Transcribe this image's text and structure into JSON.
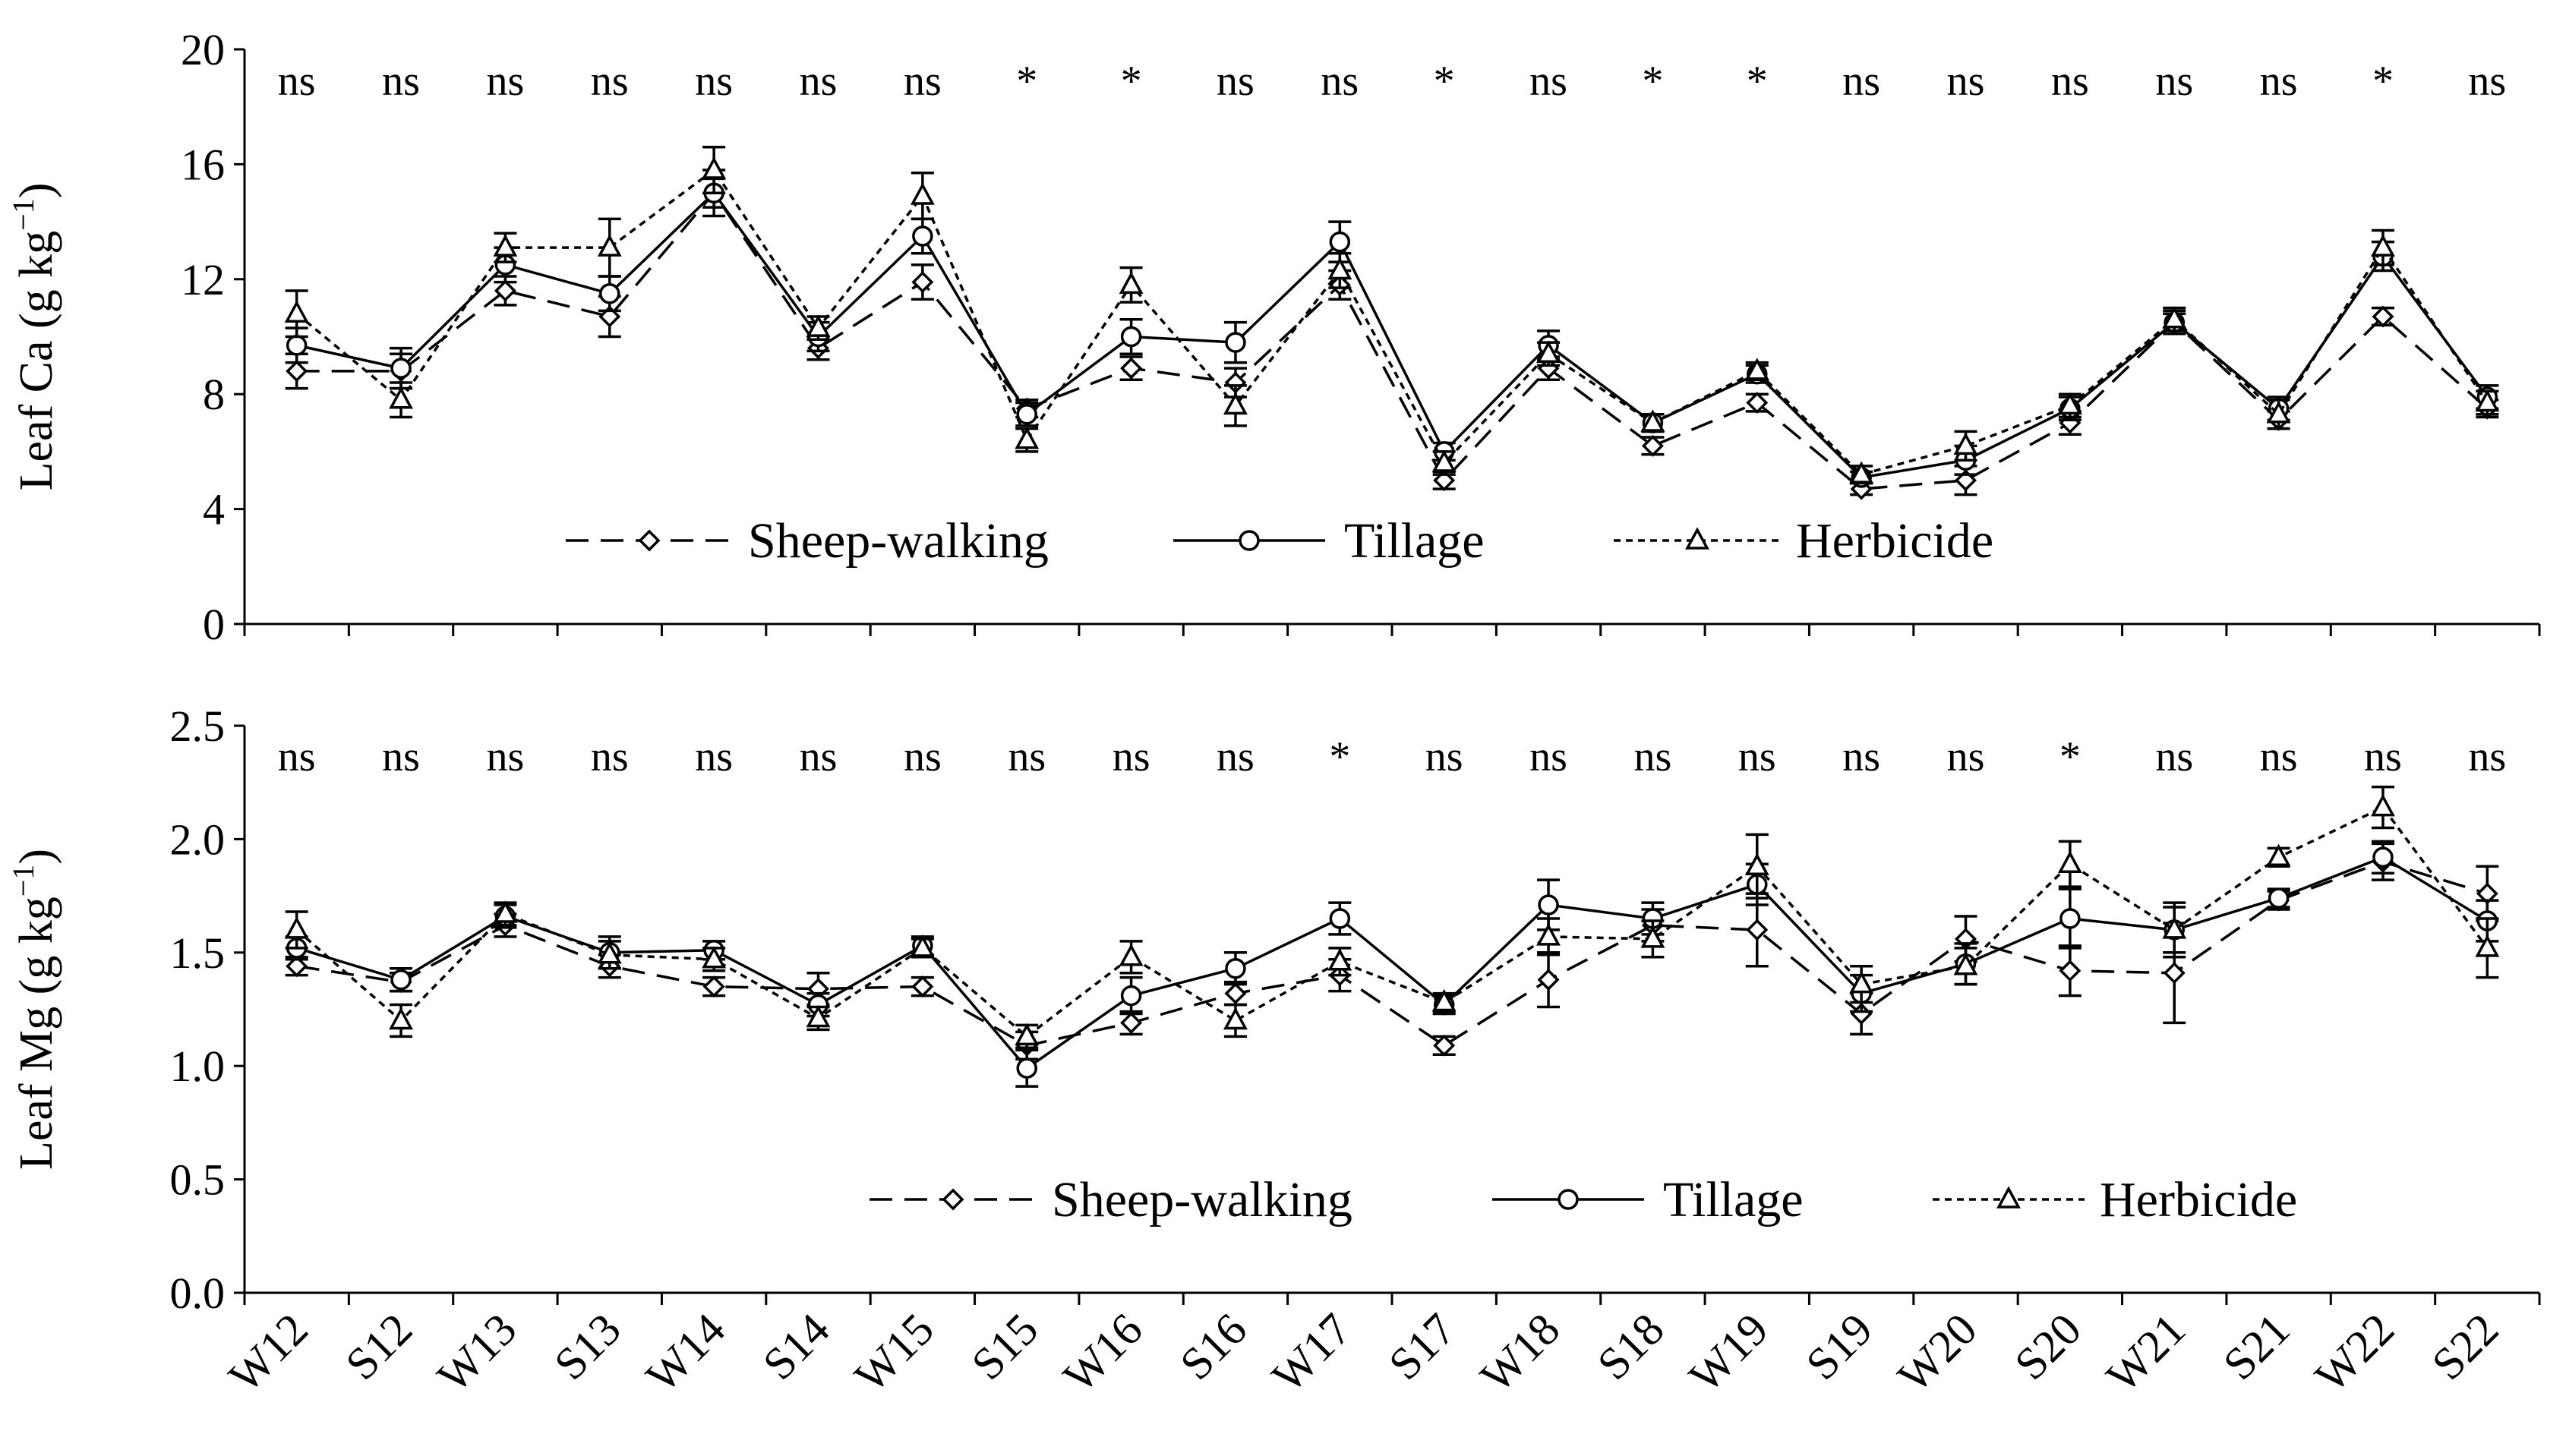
{
  "colors": {
    "ink": "#000000",
    "background": "#ffffff"
  },
  "categories": [
    "W12",
    "S12",
    "W13",
    "S13",
    "W14",
    "S14",
    "W15",
    "S15",
    "W16",
    "S16",
    "W17",
    "S17",
    "W18",
    "S18",
    "W19",
    "S19",
    "W20",
    "S20",
    "W21",
    "S21",
    "W22",
    "S22"
  ],
  "legend_labels": {
    "sheep": "Sheep-walking",
    "tillage": "Tillage",
    "herbicide": "Herbicide"
  },
  "chart_data": [
    {
      "type": "line",
      "ylabel_main": "Leaf Ca (g kg",
      "ylabel_sup": "−1",
      "ylabel_close": ")",
      "ylim": [
        0,
        20
      ],
      "yticks": [
        "0",
        "4",
        "8",
        "12",
        "16",
        "20"
      ],
      "significance": [
        "ns",
        "ns",
        "ns",
        "ns",
        "ns",
        "ns",
        "ns",
        "*",
        "*",
        "ns",
        "ns",
        "*",
        "ns",
        "*",
        "*",
        "ns",
        "ns",
        "ns",
        "ns",
        "ns",
        "*",
        "ns"
      ],
      "legend": "bottom-center",
      "series": [
        {
          "name": "Sheep-walking",
          "marker": "diamond",
          "dash": "long-dash",
          "values": [
            8.8,
            8.8,
            11.6,
            10.7,
            15.0,
            9.6,
            11.9,
            7.5,
            8.9,
            8.4,
            11.8,
            5.0,
            8.9,
            6.2,
            7.7,
            4.7,
            5.0,
            7.0,
            10.5,
            7.1,
            10.7,
            7.5
          ],
          "errors": [
            0.6,
            0.6,
            0.5,
            0.7,
            0.5,
            0.4,
            0.6,
            0.3,
            0.4,
            0.5,
            0.5,
            0.3,
            0.4,
            0.3,
            0.3,
            0.2,
            0.5,
            0.4,
            0.3,
            0.3,
            0.3,
            0.3
          ]
        },
        {
          "name": "Tillage",
          "marker": "circle",
          "dash": "solid",
          "values": [
            9.7,
            8.9,
            12.5,
            11.5,
            15.0,
            10.0,
            13.5,
            7.3,
            10.0,
            9.8,
            13.3,
            6.0,
            9.7,
            7.0,
            8.7,
            5.1,
            5.7,
            7.5,
            10.5,
            7.5,
            12.8,
            7.9
          ],
          "errors": [
            0.6,
            0.7,
            0.6,
            0.6,
            0.8,
            0.5,
            0.6,
            0.4,
            0.6,
            0.7,
            0.7,
            0.3,
            0.5,
            0.3,
            0.3,
            0.2,
            0.5,
            0.4,
            0.4,
            0.4,
            0.5,
            0.4
          ]
        },
        {
          "name": "Herbicide",
          "marker": "triangle",
          "dash": "short-dash",
          "values": [
            10.8,
            7.8,
            13.1,
            13.1,
            15.8,
            10.3,
            14.9,
            6.4,
            11.8,
            7.6,
            12.3,
            5.6,
            9.4,
            7.0,
            8.8,
            5.2,
            6.2,
            7.6,
            10.6,
            7.3,
            13.1,
            7.7
          ],
          "errors": [
            0.8,
            0.6,
            0.5,
            1.0,
            0.8,
            0.4,
            0.8,
            0.4,
            0.6,
            0.7,
            0.6,
            0.4,
            0.4,
            0.3,
            0.3,
            0.3,
            0.5,
            0.4,
            0.4,
            0.5,
            0.6,
            0.4
          ]
        }
      ]
    },
    {
      "type": "line",
      "ylabel_main": "Leaf Mg (g kg",
      "ylabel_sup": "−1",
      "ylabel_close": ")",
      "ylim": [
        0,
        2.5
      ],
      "yticks": [
        "0.0",
        "0.5",
        "1.0",
        "1.5",
        "2.0",
        "2.5"
      ],
      "significance": [
        "ns",
        "ns",
        "ns",
        "ns",
        "ns",
        "ns",
        "ns",
        "ns",
        "ns",
        "ns",
        "*",
        "ns",
        "ns",
        "ns",
        "ns",
        "ns",
        "ns",
        "*",
        "ns",
        "ns",
        "ns",
        "ns"
      ],
      "legend": "bottom-center",
      "series": [
        {
          "name": "Sheep-walking",
          "marker": "diamond",
          "dash": "long-dash",
          "values": [
            1.44,
            1.37,
            1.62,
            1.44,
            1.35,
            1.34,
            1.35,
            1.09,
            1.19,
            1.32,
            1.4,
            1.09,
            1.38,
            1.62,
            1.6,
            1.23,
            1.56,
            1.42,
            1.41,
            1.73,
            1.9,
            1.76
          ],
          "errors": [
            0.04,
            0.04,
            0.05,
            0.05,
            0.04,
            0.07,
            0.04,
            0.06,
            0.05,
            0.05,
            0.07,
            0.04,
            0.12,
            0.07,
            0.16,
            0.09,
            0.1,
            0.11,
            0.22,
            0.04,
            0.08,
            0.12
          ]
        },
        {
          "name": "Tillage",
          "marker": "circle",
          "dash": "solid",
          "values": [
            1.52,
            1.38,
            1.66,
            1.5,
            1.51,
            1.27,
            1.53,
            0.99,
            1.31,
            1.43,
            1.65,
            1.27,
            1.71,
            1.65,
            1.8,
            1.32,
            1.45,
            1.65,
            1.6,
            1.74,
            1.92,
            1.64
          ],
          "errors": [
            0.05,
            0.05,
            0.05,
            0.07,
            0.04,
            0.05,
            0.04,
            0.08,
            0.08,
            0.07,
            0.07,
            0.04,
            0.11,
            0.07,
            0.09,
            0.08,
            0.09,
            0.13,
            0.1,
            0.04,
            0.07,
            0.09
          ]
        },
        {
          "name": "Herbicide",
          "marker": "triangle",
          "dash": "short-dash",
          "values": [
            1.6,
            1.2,
            1.67,
            1.49,
            1.47,
            1.21,
            1.52,
            1.13,
            1.48,
            1.2,
            1.46,
            1.28,
            1.57,
            1.56,
            1.88,
            1.36,
            1.44,
            1.89,
            1.6,
            1.92,
            2.14,
            1.52
          ],
          "errors": [
            0.08,
            0.07,
            0.05,
            0.06,
            0.05,
            0.05,
            0.04,
            0.05,
            0.07,
            0.07,
            0.06,
            0.04,
            0.08,
            0.08,
            0.14,
            0.08,
            0.08,
            0.1,
            0.12,
            0.04,
            0.09,
            0.13
          ]
        }
      ]
    }
  ]
}
